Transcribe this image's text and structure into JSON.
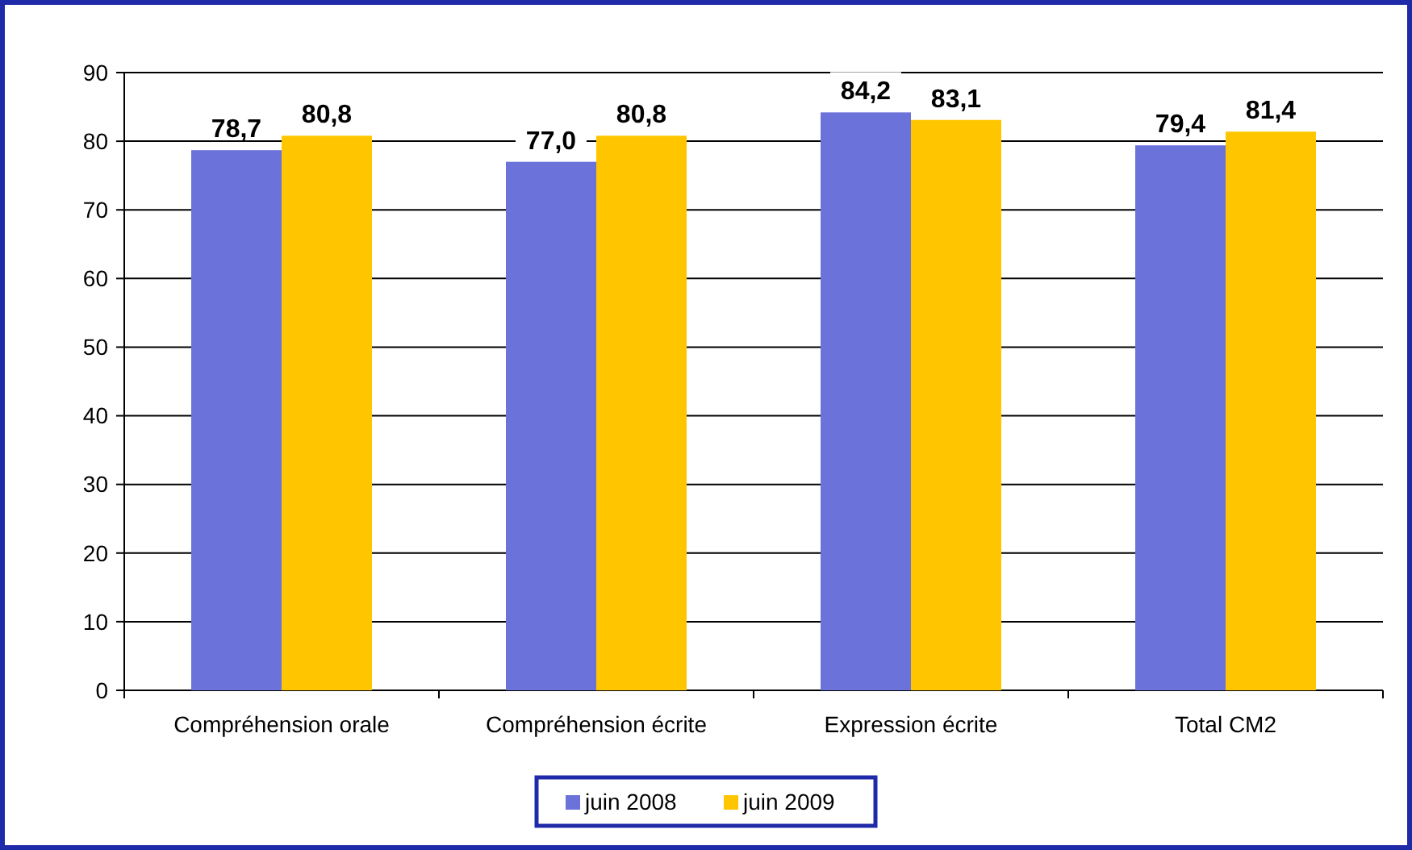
{
  "chart_data": {
    "type": "bar",
    "categories": [
      "Compréhension orale",
      "Compréhension écrite",
      "Expression écrite",
      "Total CM2"
    ],
    "series": [
      {
        "name": "juin 2008",
        "color": "#6b73db",
        "values": [
          78.7,
          77.0,
          84.2,
          79.4
        ],
        "value_labels": [
          "78,7",
          "77,0",
          "84,2",
          "79,4"
        ]
      },
      {
        "name": "juin 2009",
        "color": "#ffc600",
        "values": [
          80.8,
          80.8,
          83.1,
          81.4
        ],
        "value_labels": [
          "80,8",
          "80,8",
          "83,1",
          "81,4"
        ]
      }
    ],
    "ylim": [
      0,
      90
    ],
    "yticks": [
      0,
      10,
      20,
      30,
      40,
      50,
      60,
      70,
      80,
      90
    ],
    "grid": "y",
    "legend": "bottom"
  }
}
